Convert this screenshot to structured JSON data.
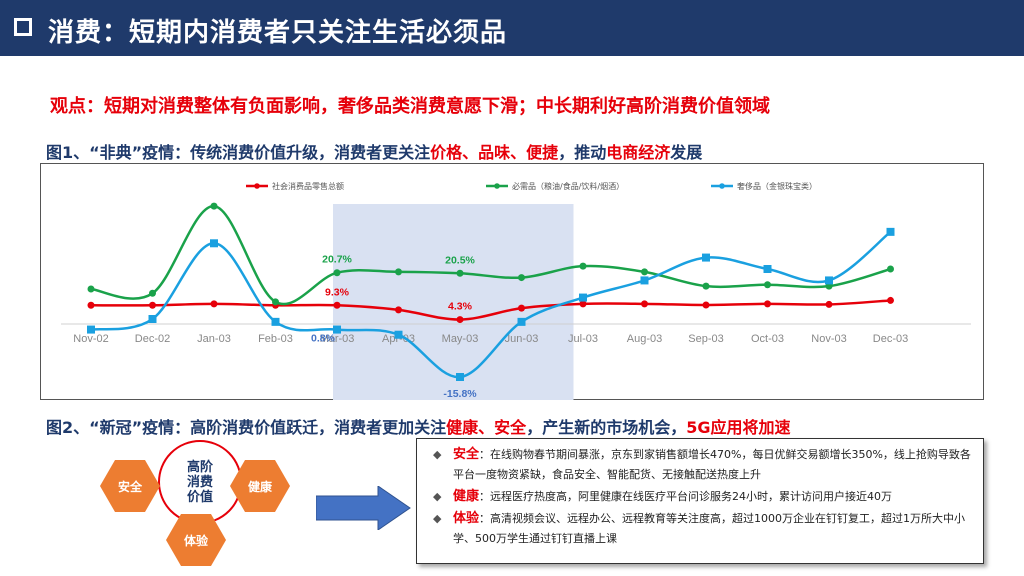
{
  "header": {
    "title": "消费：短期内消费者只关注生活必须品"
  },
  "viewpoint": "观点：短期对消费整体有负面影响，奢侈品类消费意愿下滑；中长期利好高阶消费价值领域",
  "fig1": {
    "prefix": "图1、“非典”疫情：传统消费价值升级，消费者更关注",
    "highlight1": "价格、品味、便捷",
    "middle": "，推动",
    "highlight2": "电商经济",
    "suffix": "发展"
  },
  "fig2": {
    "prefix": "图2、“新冠”疫情：高阶消费价值跃迁，消费者更加关注",
    "highlight1": "健康、安全",
    "middle": "，产生新的市场机会，",
    "highlight2": "5G应用将加速"
  },
  "chart_data": {
    "type": "line",
    "categories": [
      "Nov-02",
      "Dec-02",
      "Jan-03",
      "Feb-03",
      "Mar-03",
      "Apr-03",
      "May-03",
      "Jun-03",
      "Jul-03",
      "Aug-03",
      "Sep-03",
      "Oct-03",
      "Nov-03",
      "Dec-03"
    ],
    "series": [
      {
        "name": "社会消费品零售总额",
        "color": "#e6000a",
        "values": [
          9.3,
          9.3,
          9.8,
          9.3,
          9.3,
          7.7,
          4.3,
          8.3,
          9.8,
          9.8,
          9.4,
          9.8,
          9.6,
          11.0
        ]
      },
      {
        "name": "必需品（粮油/食品/饮料/烟酒）",
        "color": "#1aa24a",
        "values": [
          15.0,
          13.5,
          44.0,
          10.5,
          20.7,
          21.0,
          20.5,
          19.0,
          23.0,
          21.0,
          16.0,
          16.5,
          16.0,
          22.0
        ]
      },
      {
        "name": "奢侈品（金银珠宝类）",
        "color": "#1aa0e0",
        "values": [
          0.8,
          4.5,
          31.0,
          3.5,
          0.8,
          -1.0,
          -15.8,
          3.5,
          12.0,
          18.0,
          26.0,
          22.0,
          18.0,
          35.0
        ]
      }
    ],
    "data_labels": [
      {
        "series": 1,
        "index": 4,
        "text": "20.7%"
      },
      {
        "series": 1,
        "index": 6,
        "text": "20.5%"
      },
      {
        "series": 0,
        "index": 4,
        "text": "9.3%"
      },
      {
        "series": 0,
        "index": 6,
        "text": "4.3%"
      },
      {
        "series": 2,
        "index": 4,
        "text": "0.8%"
      },
      {
        "series": 2,
        "index": 6,
        "text": "-15.8%"
      }
    ],
    "highlight_range": [
      "Mar-03",
      "Jun-03"
    ],
    "ylim": [
      -20,
      50
    ],
    "legend": "top",
    "grid": false
  },
  "diagram": {
    "center": "高阶\n消费\n价值",
    "left": "安全",
    "right": "健康",
    "bottom": "体验"
  },
  "info": [
    {
      "key": "安全",
      "text": "：在线购物春节期间暴涨，京东到家销售额增长470%，每日优鲜交易额增长350%，线上抢购导致各平台一度物资紧缺，食品安全、智能配货、无接触配送热度上升"
    },
    {
      "key": "健康",
      "text": "：远程医疗热度高，阿里健康在线医疗平台问诊服务24小时，累计访问用户接近40万"
    },
    {
      "key": "体验",
      "text": "：高清视频会议、远程办公、远程教育等关注度高，超过1000万企业在钉钉复工，超过1万所大中小学、500万学生通过钉钉直播上课"
    }
  ]
}
